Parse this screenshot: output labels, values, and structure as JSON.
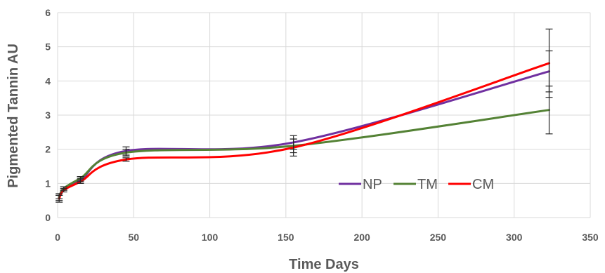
{
  "chart_data": {
    "type": "line",
    "xlabel": "Time Days",
    "ylabel": "Pigmented Tannin AU",
    "xlim": [
      0,
      350
    ],
    "ylim": [
      0,
      6
    ],
    "xticks": [
      0,
      50,
      100,
      150,
      200,
      250,
      300,
      350
    ],
    "yticks": [
      0,
      1,
      2,
      3,
      4,
      5,
      6
    ],
    "grid": true,
    "legend_position": "lower-right inside",
    "series": [
      {
        "name": "NP",
        "color": "#7030A0",
        "x": [
          1,
          4,
          15,
          45,
          155,
          323
        ],
        "y": [
          0.6,
          0.85,
          1.1,
          1.95,
          2.2,
          4.28
        ],
        "err": [
          0.1,
          0.05,
          0.05,
          0.12,
          0.2,
          0.6
        ]
      },
      {
        "name": "TM",
        "color": "#548235",
        "x": [
          1,
          4,
          15,
          45,
          155,
          323
        ],
        "y": [
          0.6,
          0.85,
          1.15,
          1.9,
          2.1,
          3.15
        ],
        "err": [
          0.05,
          0.05,
          0.05,
          0.1,
          0.2,
          0.7
        ]
      },
      {
        "name": "CM",
        "color": "#FF0000",
        "x": [
          1,
          4,
          15,
          45,
          155,
          323
        ],
        "y": [
          0.55,
          0.8,
          1.05,
          1.7,
          2.05,
          4.52
        ],
        "err": [
          0.1,
          0.05,
          0.05,
          0.05,
          0.25,
          1.0
        ]
      }
    ]
  }
}
